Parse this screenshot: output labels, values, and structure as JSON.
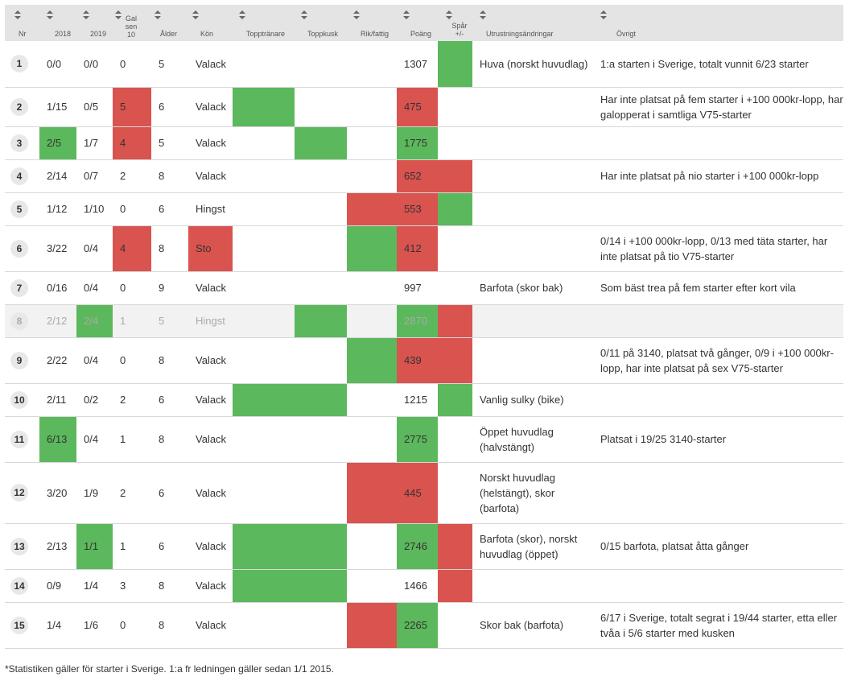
{
  "colors": {
    "green": "#5cb85c",
    "red": "#d9534f",
    "header_bg": "#e4e4e4"
  },
  "header": {
    "nr": "Nr",
    "y2018": "2018",
    "y2019": "2019",
    "gal": [
      "Gal",
      "sen",
      "10"
    ],
    "alder": "Ålder",
    "kon": "Kön",
    "topptranare": "Topptränare",
    "toppkusk": "Toppkusk",
    "rikfattig": "Rik/fattig",
    "poang": "Poäng",
    "spar": [
      "Spår",
      "+/-"
    ],
    "utrustning": "Utrustningsändringar",
    "ovrigt": "Övrigt"
  },
  "rows": [
    {
      "nr": "1",
      "y2018": "0/0",
      "y2019": "0/0",
      "gal": "0",
      "alder": "5",
      "kon": "Valack",
      "utrustning": "Huva (norskt huvudlag)",
      "ovrigt": "1:a starten i Sverige, totalt vunnit 6/23 starter",
      "dim": false,
      "colors": {
        "y2018": "",
        "y2019": "",
        "gal": "",
        "kon": "",
        "tt": "",
        "tk": "",
        "rf": "",
        "poang": "",
        "spar": "g"
      }
    },
    {
      "nr": "2",
      "y2018": "1/15",
      "y2019": "0/5",
      "gal": "5",
      "alder": "6",
      "kon": "Valack",
      "utrustning": "",
      "ovrigt": "Har inte platsat på fem starter i +100 000kr-lopp, har galopperat i samtliga V75-starter",
      "dim": false,
      "colors": {
        "y2018": "",
        "y2019": "",
        "gal": "r",
        "kon": "",
        "tt": "g",
        "tk": "",
        "rf": "",
        "poang": "r",
        "spar": ""
      }
    },
    {
      "nr": "3",
      "y2018": "2/5",
      "y2019": "1/7",
      "gal": "4",
      "alder": "5",
      "kon": "Valack",
      "utrustning": "",
      "ovrigt": "",
      "dim": false,
      "colors": {
        "y2018": "g",
        "y2019": "",
        "gal": "r",
        "kon": "",
        "tt": "",
        "tk": "g",
        "rf": "",
        "poang": "g",
        "spar": ""
      }
    },
    {
      "nr": "4",
      "y2018": "2/14",
      "y2019": "0/7",
      "gal": "2",
      "alder": "8",
      "kon": "Valack",
      "utrustning": "",
      "ovrigt": "Har inte platsat på nio starter i +100 000kr-lopp",
      "dim": false,
      "colors": {
        "y2018": "",
        "y2019": "",
        "gal": "",
        "kon": "",
        "tt": "",
        "tk": "",
        "rf": "",
        "poang": "r",
        "spar": "r"
      }
    },
    {
      "nr": "5",
      "y2018": "1/12",
      "y2019": "1/10",
      "gal": "0",
      "alder": "6",
      "kon": "Hingst",
      "utrustning": "",
      "ovrigt": "",
      "dim": false,
      "colors": {
        "y2018": "",
        "y2019": "",
        "gal": "",
        "kon": "",
        "tt": "",
        "tk": "",
        "rf": "r",
        "poang": "r",
        "spar": "g"
      }
    },
    {
      "nr": "6",
      "y2018": "3/22",
      "y2019": "0/4",
      "gal": "4",
      "alder": "8",
      "kon": "Sto",
      "utrustning": "",
      "ovrigt": "0/14 i +100 000kr-lopp, 0/13 med täta starter, har inte platsat på tio V75-starter",
      "dim": false,
      "colors": {
        "y2018": "",
        "y2019": "",
        "gal": "r",
        "kon": "r",
        "tt": "",
        "tk": "",
        "rf": "g",
        "poang": "r",
        "spar": ""
      }
    },
    {
      "nr": "7",
      "y2018": "0/16",
      "y2019": "0/4",
      "gal": "0",
      "alder": "9",
      "kon": "Valack",
      "utrustning": "Barfota (skor bak)",
      "ovrigt": "Som bäst trea på fem starter efter kort vila",
      "dim": false,
      "colors": {
        "y2018": "",
        "y2019": "",
        "gal": "",
        "kon": "",
        "tt": "",
        "tk": "",
        "rf": "",
        "poang": "",
        "spar": ""
      }
    },
    {
      "nr": "8",
      "y2018": "2/12",
      "y2019": "2/4",
      "gal": "1",
      "alder": "5",
      "kon": "Hingst",
      "utrustning": "",
      "ovrigt": "",
      "dim": true,
      "colors": {
        "y2018": "",
        "y2019": "g",
        "gal": "",
        "kon": "",
        "tt": "",
        "tk": "g",
        "rf": "",
        "poang": "g",
        "spar": "r"
      }
    },
    {
      "nr": "9",
      "y2018": "2/22",
      "y2019": "0/4",
      "gal": "0",
      "alder": "8",
      "kon": "Valack",
      "utrustning": "",
      "ovrigt": "0/11 på 3140, platsat två gånger, 0/9 i +100 000kr-lopp, har inte platsat på sex V75-starter",
      "dim": false,
      "colors": {
        "y2018": "",
        "y2019": "",
        "gal": "",
        "kon": "",
        "tt": "",
        "tk": "",
        "rf": "g",
        "poang": "r",
        "spar": "r"
      }
    },
    {
      "nr": "10",
      "y2018": "2/11",
      "y2019": "0/2",
      "gal": "2",
      "alder": "6",
      "kon": "Valack",
      "utrustning": "Vanlig sulky (bike)",
      "ovrigt": "",
      "dim": false,
      "colors": {
        "y2018": "",
        "y2019": "",
        "gal": "",
        "kon": "",
        "tt": "g",
        "tk": "g",
        "rf": "",
        "poang": "",
        "spar": "g"
      }
    },
    {
      "nr": "11",
      "y2018": "6/13",
      "y2019": "0/4",
      "gal": "1",
      "alder": "8",
      "kon": "Valack",
      "utrustning": "Öppet huvudlag (halvstängt)",
      "ovrigt": "Platsat i 19/25 3140-starter",
      "dim": false,
      "colors": {
        "y2018": "g",
        "y2019": "",
        "gal": "",
        "kon": "",
        "tt": "",
        "tk": "",
        "rf": "",
        "poang": "g",
        "spar": ""
      }
    },
    {
      "nr": "12",
      "y2018": "3/20",
      "y2019": "1/9",
      "gal": "2",
      "alder": "6",
      "kon": "Valack",
      "utrustning": "Norskt huvudlag (helstängt), skor (barfota)",
      "ovrigt": "",
      "dim": false,
      "colors": {
        "y2018": "",
        "y2019": "",
        "gal": "",
        "kon": "",
        "tt": "",
        "tk": "",
        "rf": "r",
        "poang": "r",
        "spar": ""
      }
    },
    {
      "nr": "13",
      "y2018": "2/13",
      "y2019": "1/1",
      "gal": "1",
      "alder": "6",
      "kon": "Valack",
      "utrustning": "Barfota (skor), norskt huvudlag (öppet)",
      "ovrigt": "0/15 barfota, platsat åtta gånger",
      "dim": false,
      "colors": {
        "y2018": "",
        "y2019": "g",
        "gal": "",
        "kon": "",
        "tt": "g",
        "tk": "g",
        "rf": "",
        "poang": "g",
        "spar": "r"
      }
    },
    {
      "nr": "14",
      "y2018": "0/9",
      "y2019": "1/4",
      "gal": "3",
      "alder": "8",
      "kon": "Valack",
      "utrustning": "",
      "ovrigt": "",
      "dim": false,
      "colors": {
        "y2018": "",
        "y2019": "",
        "gal": "",
        "kon": "",
        "tt": "g",
        "tk": "g",
        "rf": "",
        "poang": "",
        "spar": "r"
      }
    },
    {
      "nr": "15",
      "y2018": "1/4",
      "y2019": "1/6",
      "gal": "0",
      "alder": "8",
      "kon": "Valack",
      "utrustning": "Skor bak (barfota)",
      "ovrigt": "6/17 i Sverige, totalt segrat i 19/44 starter, etta eller tvåa i 5/6 starter med kusken",
      "dim": false,
      "colors": {
        "y2018": "",
        "y2019": "",
        "gal": "",
        "kon": "",
        "tt": "",
        "tk": "",
        "rf": "r",
        "poang": "g",
        "spar": ""
      }
    }
  ],
  "points": [
    "1307",
    "475",
    "1775",
    "652",
    "553",
    "412",
    "997",
    "2870",
    "439",
    "1215",
    "2775",
    "445",
    "2746",
    "1466",
    "2265"
  ],
  "footnote": "*Statistiken gäller för starter i Sverige. 1:a fr ledningen gäller sedan 1/1 2015."
}
